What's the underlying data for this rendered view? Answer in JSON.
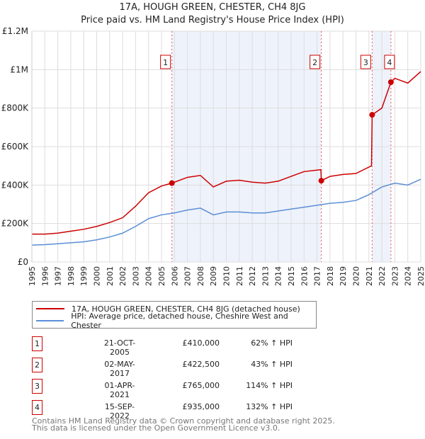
{
  "title": "17A, HOUGH GREEN, CHESTER, CH4 8JG",
  "subtitle": "Price paid vs. HM Land Registry's House Price Index (HPI)",
  "chart_data": {
    "type": "line",
    "title": "17A, HOUGH GREEN, CHESTER, CH4 8JG",
    "xlim": [
      1995,
      2025
    ],
    "ylim": [
      0,
      1200000
    ],
    "yticks": [
      {
        "v": 0,
        "label": "£0"
      },
      {
        "v": 200000,
        "label": "£200K"
      },
      {
        "v": 400000,
        "label": "£400K"
      },
      {
        "v": 600000,
        "label": "£600K"
      },
      {
        "v": 800000,
        "label": "£800K"
      },
      {
        "v": 1000000,
        "label": "£1M"
      },
      {
        "v": 1200000,
        "label": "£1.2M"
      }
    ],
    "xticks": [
      "1995",
      "1996",
      "1997",
      "1998",
      "1999",
      "2000",
      "2001",
      "2002",
      "2003",
      "2004",
      "2005",
      "2006",
      "2007",
      "2008",
      "2009",
      "2010",
      "2011",
      "2012",
      "2013",
      "2014",
      "2015",
      "2016",
      "2017",
      "2018",
      "2019",
      "2020",
      "2021",
      "2022",
      "2023",
      "2024",
      "2025"
    ],
    "shaded": [
      [
        2005.8,
        2017.33
      ],
      [
        2021.25,
        2022.7
      ]
    ],
    "series": [
      {
        "name": "17A, HOUGH GREEN, CHESTER, CH4 8JG (detached house)",
        "color": "#cc0000",
        "x": [
          1995,
          1996,
          1997,
          1998,
          1999,
          2000,
          2001,
          2002,
          2003,
          2004,
          2005,
          2005.8,
          2006,
          2007,
          2008,
          2009,
          2010,
          2011,
          2012,
          2013,
          2014,
          2015,
          2016,
          2017.3,
          2017.33,
          2018,
          2019,
          2020,
          2021.2,
          2021.25,
          2022,
          2022.7,
          2023,
          2024,
          2025
        ],
        "y": [
          145000,
          145000,
          150000,
          160000,
          170000,
          185000,
          205000,
          230000,
          290000,
          360000,
          395000,
          410000,
          415000,
          440000,
          450000,
          390000,
          420000,
          425000,
          415000,
          410000,
          420000,
          445000,
          470000,
          480000,
          422500,
          445000,
          455000,
          460000,
          500000,
          765000,
          800000,
          935000,
          955000,
          930000,
          990000
        ]
      },
      {
        "name": "HPI: Average price, detached house, Cheshire West and Chester",
        "color": "#5b8fd6",
        "x": [
          1995,
          1996,
          1997,
          1998,
          1999,
          2000,
          2001,
          2002,
          2003,
          2004,
          2005,
          2006,
          2007,
          2008,
          2009,
          2010,
          2011,
          2012,
          2013,
          2014,
          2015,
          2016,
          2017,
          2018,
          2019,
          2020,
          2021,
          2022,
          2023,
          2024,
          2025
        ],
        "y": [
          88000,
          90000,
          95000,
          100000,
          105000,
          115000,
          130000,
          150000,
          185000,
          225000,
          245000,
          255000,
          270000,
          280000,
          245000,
          260000,
          260000,
          255000,
          255000,
          265000,
          275000,
          285000,
          295000,
          305000,
          310000,
          320000,
          350000,
          390000,
          410000,
          400000,
          430000
        ]
      }
    ],
    "sales": [
      {
        "n": "1",
        "x": 2005.8,
        "y": 410000
      },
      {
        "n": "2",
        "x": 2017.33,
        "y": 422500
      },
      {
        "n": "3",
        "x": 2021.25,
        "y": 765000
      },
      {
        "n": "4",
        "x": 2022.7,
        "y": 935000
      }
    ]
  },
  "legend": [
    "17A, HOUGH GREEN, CHESTER, CH4 8JG (detached house)",
    "HPI: Average price, detached house, Cheshire West and Chester"
  ],
  "table": [
    {
      "n": "1",
      "date": "21-OCT-2005",
      "price": "£410,000",
      "hpi": "62% ↑ HPI"
    },
    {
      "n": "2",
      "date": "02-MAY-2017",
      "price": "£422,500",
      "hpi": "43% ↑ HPI"
    },
    {
      "n": "3",
      "date": "01-APR-2021",
      "price": "£765,000",
      "hpi": "114% ↑ HPI"
    },
    {
      "n": "4",
      "date": "15-SEP-2022",
      "price": "£935,000",
      "hpi": "132% ↑ HPI"
    }
  ],
  "footer": [
    "Contains HM Land Registry data © Crown copyright and database right 2025.",
    "This data is licensed under the Open Government Licence v3.0."
  ]
}
